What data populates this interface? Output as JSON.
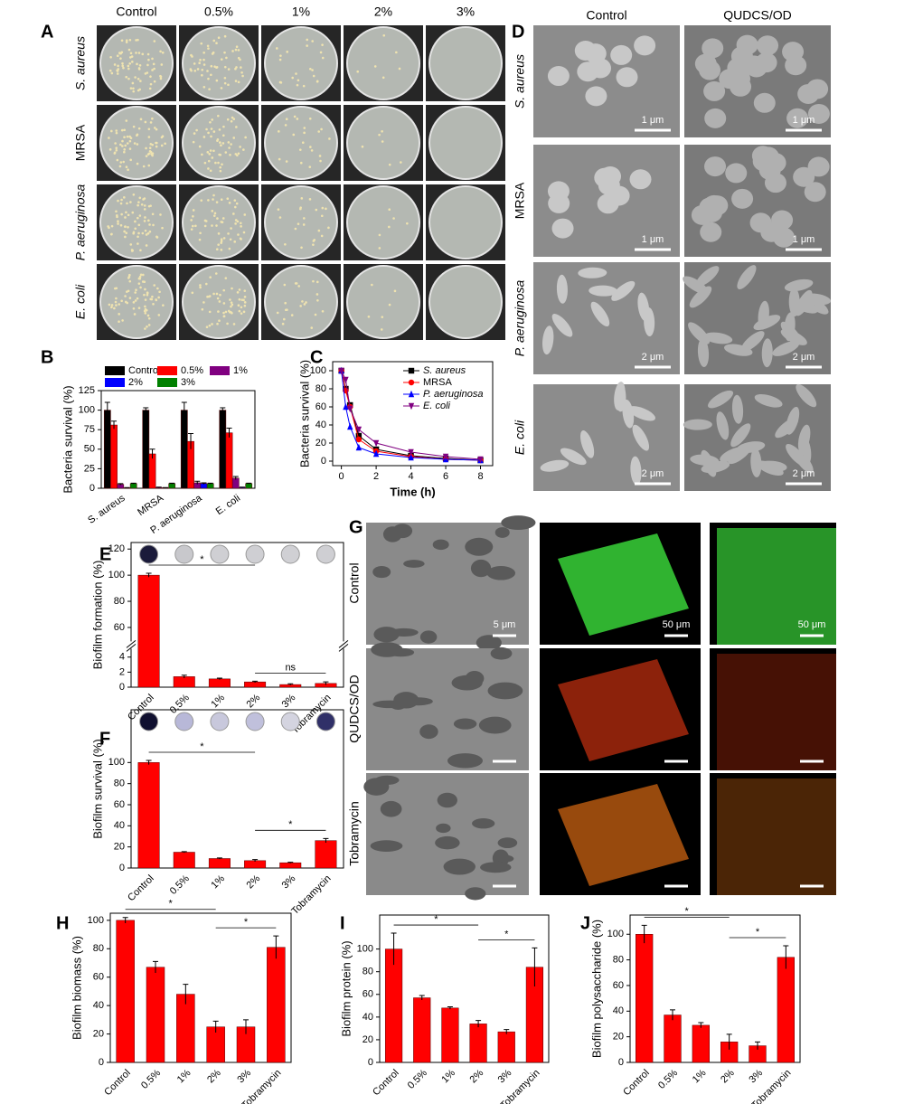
{
  "panel_labels": [
    "A",
    "B",
    "C",
    "D",
    "E",
    "F",
    "G",
    "H",
    "I",
    "J"
  ],
  "plates": {
    "columns": [
      "Control",
      "0.5%",
      "1%",
      "2%",
      "3%"
    ],
    "rows": [
      "S. aureus",
      "MRSA",
      "P. aeruginosa",
      "E. coli"
    ]
  },
  "sem": {
    "columns": [
      "Control",
      "QUDCS/OD"
    ],
    "rows": [
      "S. aureus",
      "MRSA",
      "P. aeruginosa",
      "E. coli"
    ],
    "scale_bars": [
      [
        "1 μm",
        "1 μm"
      ],
      [
        "1 μm",
        "1 μm"
      ],
      [
        "2 μm",
        "2 μm"
      ],
      [
        "2 μm",
        "2 μm"
      ]
    ]
  },
  "confocal": {
    "rows": [
      "Control",
      "QUDCS/OD",
      "Tobramycin"
    ],
    "scale_bars": [
      "5 μm",
      "50 μm",
      "50 μm"
    ]
  },
  "chart_data": [
    {
      "type": "bar",
      "ylabel": "Bacteria survival (%)",
      "categories": [
        "S. aureus",
        "MRSA",
        "P. aeruginosa",
        "E. coli"
      ],
      "series": [
        {
          "name": "Control",
          "color": "#000000",
          "values": [
            100,
            100,
            100,
            100
          ],
          "errors": [
            10,
            3,
            10,
            3
          ]
        },
        {
          "name": "0.5%",
          "color": "#ff0000",
          "values": [
            81,
            44,
            60,
            71
          ],
          "errors": [
            5,
            6,
            10,
            6
          ]
        },
        {
          "name": "1%",
          "color": "#800080",
          "values": [
            5,
            1,
            7,
            13
          ],
          "errors": [
            1,
            0.5,
            2,
            2
          ]
        },
        {
          "name": "2%",
          "color": "#0000ff",
          "values": [
            0.5,
            0.5,
            6,
            1
          ],
          "errors": [
            0.3,
            0.3,
            1,
            0.5
          ]
        },
        {
          "name": "3%",
          "color": "#008000",
          "values": [
            6,
            6,
            6,
            6
          ],
          "errors": [
            0.5,
            0.5,
            0.5,
            0.5
          ]
        }
      ],
      "ylim": [
        0,
        125
      ],
      "yticks": [
        0,
        25,
        50,
        75,
        100,
        125
      ]
    },
    {
      "type": "line",
      "ylabel": "Bacteria survival (%)",
      "xlabel": "Time (h)",
      "x": [
        0,
        0.25,
        0.5,
        1,
        2,
        4,
        6,
        8
      ],
      "series": [
        {
          "name": "S. aureus",
          "color": "#000000",
          "marker": "square",
          "values": [
            100,
            80,
            62,
            28,
            13,
            6,
            3,
            1
          ]
        },
        {
          "name": "MRSA",
          "color": "#ff0000",
          "marker": "circle",
          "values": [
            100,
            78,
            60,
            24,
            11,
            5,
            2,
            1
          ]
        },
        {
          "name": "P. aeruginosa",
          "color": "#0000ff",
          "marker": "triangle",
          "values": [
            100,
            60,
            38,
            15,
            8,
            4,
            2,
            1
          ]
        },
        {
          "name": "E. coli",
          "color": "#800080",
          "marker": "down-triangle",
          "values": [
            100,
            90,
            58,
            35,
            20,
            10,
            5,
            2
          ]
        }
      ],
      "xlim": [
        -0.5,
        8.7
      ],
      "xticks": [
        0,
        2,
        4,
        6,
        8
      ],
      "ylim": [
        -5,
        110
      ],
      "yticks": [
        0,
        20,
        40,
        60,
        80,
        100
      ]
    },
    {
      "type": "bar",
      "ylabel": "Biofilm formation (%)",
      "categories": [
        "Control",
        "0.5%",
        "1%",
        "2%",
        "3%",
        "Tobramycin"
      ],
      "values": [
        100,
        1.4,
        1.1,
        0.7,
        0.35,
        0.5
      ],
      "errors": [
        1.5,
        0.2,
        0.1,
        0.1,
        0.1,
        0.2
      ],
      "color": "#ff0000",
      "ylim": [
        0,
        125
      ],
      "ybreak": [
        5,
        50
      ],
      "yticks": [
        0,
        2,
        4,
        60,
        80,
        100,
        120
      ],
      "annotations": [
        {
          "text": "*",
          "between": [
            "Control",
            "2%"
          ]
        },
        {
          "text": "ns",
          "between": [
            "2%",
            "Tobramycin"
          ]
        }
      ]
    },
    {
      "type": "bar",
      "ylabel": "Biofilm survival (%)",
      "categories": [
        "Control",
        "0.5%",
        "1%",
        "2%",
        "3%",
        "Tobramycin"
      ],
      "values": [
        100,
        15,
        9,
        7,
        5,
        26
      ],
      "errors": [
        2,
        0.5,
        0.5,
        1,
        0.5,
        2
      ],
      "color": "#ff0000",
      "ylim": [
        0,
        150
      ],
      "yticks": [
        0,
        20,
        40,
        60,
        80,
        100
      ],
      "annotations": [
        {
          "text": "*",
          "between": [
            "Control",
            "2%"
          ]
        },
        {
          "text": "*",
          "between": [
            "2%",
            "Tobramycin"
          ]
        }
      ]
    },
    {
      "type": "bar",
      "ylabel": "Biofilm biomass (%)",
      "categories": [
        "Control",
        "0.5%",
        "1%",
        "2%",
        "3%",
        "Tobramycin"
      ],
      "values": [
        100,
        67,
        48,
        25,
        25,
        81
      ],
      "errors": [
        2,
        4,
        7,
        4,
        5,
        8
      ],
      "color": "#ff0000",
      "ylim": [
        0,
        105
      ],
      "yticks": [
        0,
        20,
        40,
        60,
        80,
        100
      ],
      "annotations": [
        {
          "text": "*",
          "between": [
            "Control",
            "2%"
          ]
        },
        {
          "text": "*",
          "between": [
            "2%",
            "Tobramycin"
          ]
        }
      ]
    },
    {
      "type": "bar",
      "ylabel": "Biofilm protein (%)",
      "categories": [
        "Control",
        "0.5%",
        "1%",
        "2%",
        "3%",
        "Tobramycin"
      ],
      "values": [
        100,
        57,
        48,
        34,
        27,
        84
      ],
      "errors": [
        14,
        2,
        1,
        3,
        2,
        17
      ],
      "color": "#ff0000",
      "ylim": [
        0,
        130
      ],
      "yticks": [
        0,
        20,
        40,
        60,
        80,
        100
      ],
      "annotations": [
        {
          "text": "*",
          "between": [
            "Control",
            "2%"
          ]
        },
        {
          "text": "*",
          "between": [
            "2%",
            "Tobramycin"
          ]
        }
      ]
    },
    {
      "type": "bar",
      "ylabel": "Biofilm polysaccharide (%)",
      "categories": [
        "Control",
        "0.5%",
        "1%",
        "2%",
        "3%",
        "Tobramycin"
      ],
      "values": [
        100,
        37,
        29,
        16,
        13,
        82
      ],
      "errors": [
        7,
        4,
        2,
        6,
        3,
        9
      ],
      "color": "#ff0000",
      "ylim": [
        0,
        115
      ],
      "yticks": [
        0,
        20,
        40,
        60,
        80,
        100
      ],
      "annotations": [
        {
          "text": "*",
          "between": [
            "Control",
            "2%"
          ]
        },
        {
          "text": "*",
          "between": [
            "2%",
            "Tobramycin"
          ]
        }
      ]
    }
  ]
}
